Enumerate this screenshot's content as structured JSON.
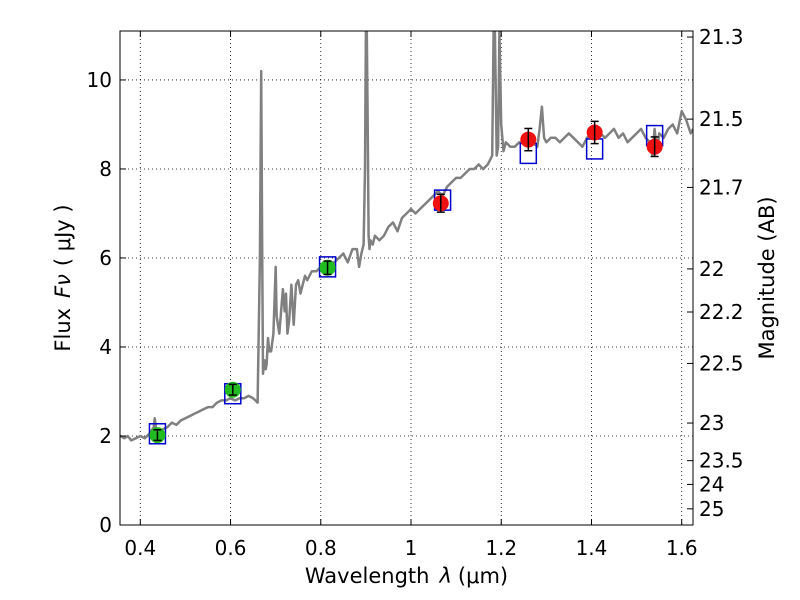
{
  "chart_data": {
    "type": "line",
    "xlabel": "Wavelength",
    "xlabel_symbol": "λ",
    "xlabel_unit": "(μm)",
    "ylabel": "Flux",
    "ylabel_symbol": "Fν",
    "ylabel_unit": "( μJy )",
    "y2label": "Magnitude (AB)",
    "xlim": [
      0.355,
      1.625
    ],
    "ylim": [
      0,
      11.1
    ],
    "grid": true,
    "grid_style": "dotted",
    "x_ticks": [
      0.4,
      0.6,
      0.8,
      1,
      1.2,
      1.4,
      1.6
    ],
    "x_tick_labels": [
      "0.4",
      "0.6",
      "0.8",
      "1",
      "1.2",
      "1.4",
      "1.6"
    ],
    "y_ticks": [
      0,
      2,
      4,
      6,
      8,
      10
    ],
    "y_tick_labels": [
      "0",
      "2",
      "4",
      "6",
      "8",
      "10"
    ],
    "mag_ticks": [
      {
        "mag": 21.3,
        "label": "21.3"
      },
      {
        "mag": 21.5,
        "label": "21.5"
      },
      {
        "mag": 21.7,
        "label": "21.7"
      },
      {
        "mag": 22,
        "label": "22"
      },
      {
        "mag": 22.2,
        "label": "22.2"
      },
      {
        "mag": 22.5,
        "label": "22.5"
      },
      {
        "mag": 23,
        "label": "23"
      },
      {
        "mag": 23.5,
        "label": "23.5"
      },
      {
        "mag": 24,
        "label": "24"
      },
      {
        "mag": 25,
        "label": "25"
      }
    ],
    "series": [
      {
        "kind": "model-spectrum",
        "color": "#808080",
        "x": [
          0.355,
          0.365,
          0.372,
          0.38,
          0.39,
          0.4,
          0.41,
          0.42,
          0.43,
          0.432,
          0.436,
          0.44,
          0.45,
          0.46,
          0.47,
          0.48,
          0.49,
          0.5,
          0.51,
          0.52,
          0.53,
          0.54,
          0.55,
          0.56,
          0.57,
          0.58,
          0.59,
          0.6,
          0.61,
          0.62,
          0.63,
          0.64,
          0.65,
          0.66,
          0.665,
          0.668,
          0.67,
          0.672,
          0.675,
          0.678,
          0.68,
          0.683,
          0.686,
          0.69,
          0.695,
          0.7,
          0.702,
          0.705,
          0.708,
          0.712,
          0.716,
          0.72,
          0.723,
          0.726,
          0.73,
          0.735,
          0.74,
          0.745,
          0.75,
          0.755,
          0.76,
          0.765,
          0.77,
          0.78,
          0.79,
          0.8,
          0.81,
          0.82,
          0.83,
          0.84,
          0.85,
          0.86,
          0.87,
          0.88,
          0.885,
          0.89,
          0.895,
          0.898,
          0.9,
          0.902,
          0.904,
          0.906,
          0.908,
          0.91,
          0.915,
          0.92,
          0.93,
          0.94,
          0.95,
          0.96,
          0.97,
          0.98,
          0.99,
          1.0,
          1.01,
          1.02,
          1.03,
          1.04,
          1.05,
          1.06,
          1.07,
          1.08,
          1.09,
          1.1,
          1.11,
          1.12,
          1.13,
          1.14,
          1.15,
          1.16,
          1.17,
          1.175,
          1.18,
          1.183,
          1.186,
          1.19,
          1.193,
          1.196,
          1.2,
          1.205,
          1.21,
          1.22,
          1.23,
          1.24,
          1.25,
          1.26,
          1.27,
          1.28,
          1.285,
          1.29,
          1.295,
          1.3,
          1.31,
          1.32,
          1.33,
          1.34,
          1.35,
          1.36,
          1.37,
          1.38,
          1.39,
          1.4,
          1.41,
          1.42,
          1.43,
          1.44,
          1.45,
          1.46,
          1.47,
          1.48,
          1.49,
          1.5,
          1.51,
          1.52,
          1.53,
          1.535,
          1.54,
          1.545,
          1.55,
          1.56,
          1.57,
          1.58,
          1.59,
          1.6,
          1.61,
          1.62,
          1.625
        ],
        "y": [
          2.0,
          1.95,
          2.0,
          1.9,
          1.95,
          2.0,
          1.95,
          2.05,
          2.2,
          2.4,
          2.1,
          2.05,
          2.15,
          2.2,
          2.3,
          2.25,
          2.35,
          2.4,
          2.45,
          2.5,
          2.55,
          2.6,
          2.65,
          2.65,
          2.75,
          2.8,
          2.8,
          2.85,
          2.8,
          2.85,
          2.85,
          2.9,
          2.85,
          2.75,
          6.0,
          10.2,
          6.5,
          3.4,
          3.7,
          3.5,
          3.6,
          4.2,
          3.9,
          3.9,
          4.3,
          5.8,
          4.7,
          4.5,
          4.3,
          4.8,
          5.3,
          4.8,
          5.2,
          4.3,
          4.6,
          5.4,
          4.5,
          5.4,
          5.5,
          5.2,
          5.4,
          5.6,
          5.5,
          5.7,
          5.7,
          5.8,
          5.9,
          5.9,
          5.9,
          6.0,
          6.1,
          5.9,
          6.2,
          6.2,
          5.8,
          6.1,
          6.3,
          8.0,
          11.1,
          11.1,
          9.0,
          6.5,
          6.2,
          6.4,
          6.3,
          6.5,
          6.4,
          6.5,
          6.7,
          6.8,
          6.6,
          6.9,
          7.0,
          7.1,
          7.0,
          7.1,
          7.2,
          7.3,
          7.4,
          7.5,
          7.4,
          7.6,
          7.7,
          7.8,
          7.8,
          7.9,
          8.0,
          8.0,
          8.1,
          8.0,
          8.1,
          8.2,
          8.3,
          11.1,
          11.1,
          8.3,
          8.5,
          11.1,
          9.0,
          8.4,
          8.6,
          8.5,
          8.5,
          8.6,
          8.6,
          8.5,
          8.6,
          8.5,
          8.9,
          9.4,
          8.7,
          8.6,
          8.7,
          8.7,
          8.6,
          8.7,
          8.8,
          8.7,
          8.6,
          8.5,
          8.7,
          8.8,
          8.9,
          8.8,
          8.7,
          8.8,
          8.9,
          8.7,
          8.8,
          8.6,
          8.7,
          8.8,
          8.9,
          8.7,
          8.6,
          8.3,
          8.9,
          8.4,
          8.8,
          8.7,
          8.9,
          9.0,
          8.8,
          9.3,
          9.1,
          8.8,
          8.9
        ]
      },
      {
        "kind": "model-bands",
        "marker": "open-square",
        "color": "#0000cc",
        "x": [
          0.438,
          0.605,
          0.815,
          1.07,
          1.26,
          1.407,
          1.54
        ],
        "y": [
          2.05,
          2.95,
          5.8,
          7.3,
          8.35,
          8.45,
          8.75
        ]
      },
      {
        "kind": "photometry-optical",
        "marker": "filled-circle",
        "color": "#22bb22",
        "x": [
          0.438,
          0.605,
          0.815
        ],
        "y": [
          2.02,
          3.04,
          5.78
        ],
        "err": [
          0.12,
          0.12,
          0.15
        ]
      },
      {
        "kind": "photometry-nir",
        "marker": "filled-circle",
        "color": "#ee1111",
        "x": [
          1.066,
          1.26,
          1.407,
          1.54
        ],
        "y": [
          7.23,
          8.66,
          8.82,
          8.5
        ],
        "err": [
          0.2,
          0.25,
          0.25,
          0.22
        ]
      }
    ]
  }
}
